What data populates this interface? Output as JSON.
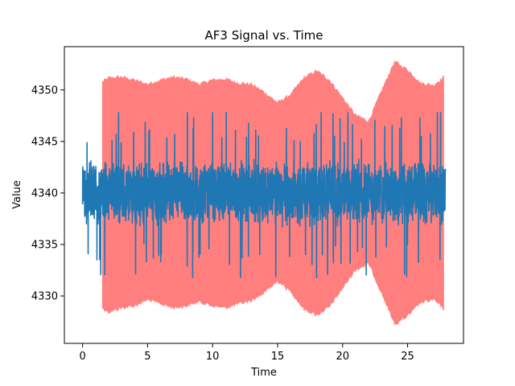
{
  "chart_data": {
    "type": "line",
    "title": "AF3 Signal vs. Time",
    "xlabel": "Time",
    "ylabel": "Value",
    "xlim": [
      -1.4,
      29.3
    ],
    "ylim": [
      4325.4,
      4354.2
    ],
    "xticks": [
      0,
      5,
      10,
      15,
      20,
      25
    ],
    "yticks": [
      4330,
      4335,
      4340,
      4345,
      4350
    ],
    "grid": false,
    "legend": "none",
    "series": [
      {
        "kind": "band",
        "color": "#ff7f7f",
        "x": [
          1.5,
          2,
          3,
          4,
          5,
          6,
          7,
          8,
          9,
          10,
          11,
          12,
          13,
          14,
          15,
          16,
          17,
          18,
          19,
          20,
          21,
          22,
          23,
          24,
          25,
          26,
          27,
          27.8
        ],
        "upper": [
          4350.8,
          4351.2,
          4351.3,
          4351.0,
          4350.6,
          4351.0,
          4351.3,
          4351.1,
          4350.6,
          4351.0,
          4351.1,
          4350.7,
          4350.6,
          4349.8,
          4348.8,
          4349.6,
          4351.2,
          4351.9,
          4351.0,
          4349.3,
          4347.6,
          4347.0,
          4350.0,
          4352.8,
          4352.0,
          4350.7,
          4350.5,
          4351.3
        ],
        "lower": [
          4328.8,
          4328.4,
          4328.8,
          4329.0,
          4329.6,
          4329.2,
          4328.8,
          4329.0,
          4329.4,
          4329.0,
          4328.8,
          4329.2,
          4329.5,
          4330.3,
          4331.4,
          4330.4,
          4328.7,
          4328.1,
          4328.9,
          4330.7,
          4332.5,
          4333.1,
          4330.2,
          4327.2,
          4328.0,
          4329.3,
          4329.6,
          4328.7
        ]
      },
      {
        "kind": "line",
        "color": "#1f77b4",
        "x_range": [
          0,
          27.9
        ],
        "center": 4340.0,
        "spread": 2.8,
        "max": 4347.8,
        "min": 4331.8
      }
    ]
  }
}
